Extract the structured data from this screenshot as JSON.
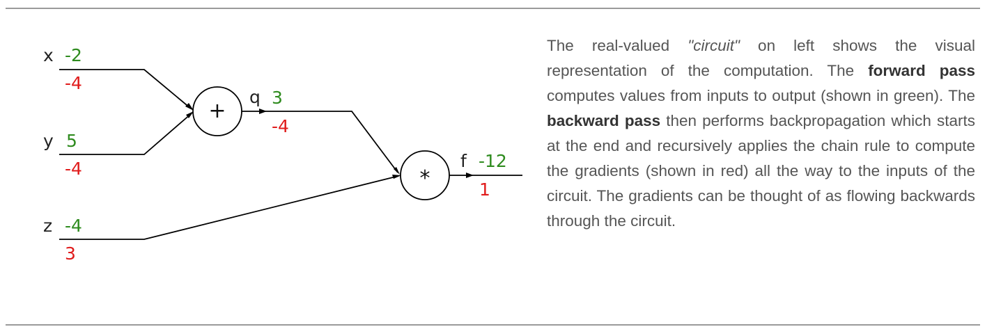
{
  "diagram": {
    "inputs": [
      {
        "name": "x",
        "value": "-2",
        "grad": "-4"
      },
      {
        "name": "y",
        "value": "5",
        "grad": "-4"
      },
      {
        "name": "z",
        "value": "-4",
        "grad": "3"
      }
    ],
    "nodes": {
      "add": {
        "symbol": "+"
      },
      "mul": {
        "symbol": "*"
      }
    },
    "intermediate": {
      "name": "q",
      "value": "3",
      "grad": "-4"
    },
    "output": {
      "name": "f",
      "value": "-12",
      "grad": "1"
    },
    "colors": {
      "forward": "#2e8b1e",
      "backward": "#e01b1b"
    }
  },
  "caption": {
    "p1": "The real-valued ",
    "circuit_term": "\"circuit\"",
    "p2": " on left shows the visual representation of the computation. The ",
    "forward_term": "forward pass",
    "p3": " computes values from inputs to output (shown in green). The ",
    "backward_term": "backward pass",
    "p4": " then performs backpropagation which starts at the end and recursively applies the chain rule to compute the gradients (shown in red) all the way to the inputs of the circuit. The gradients can be thought of as flowing backwards through the circuit."
  }
}
